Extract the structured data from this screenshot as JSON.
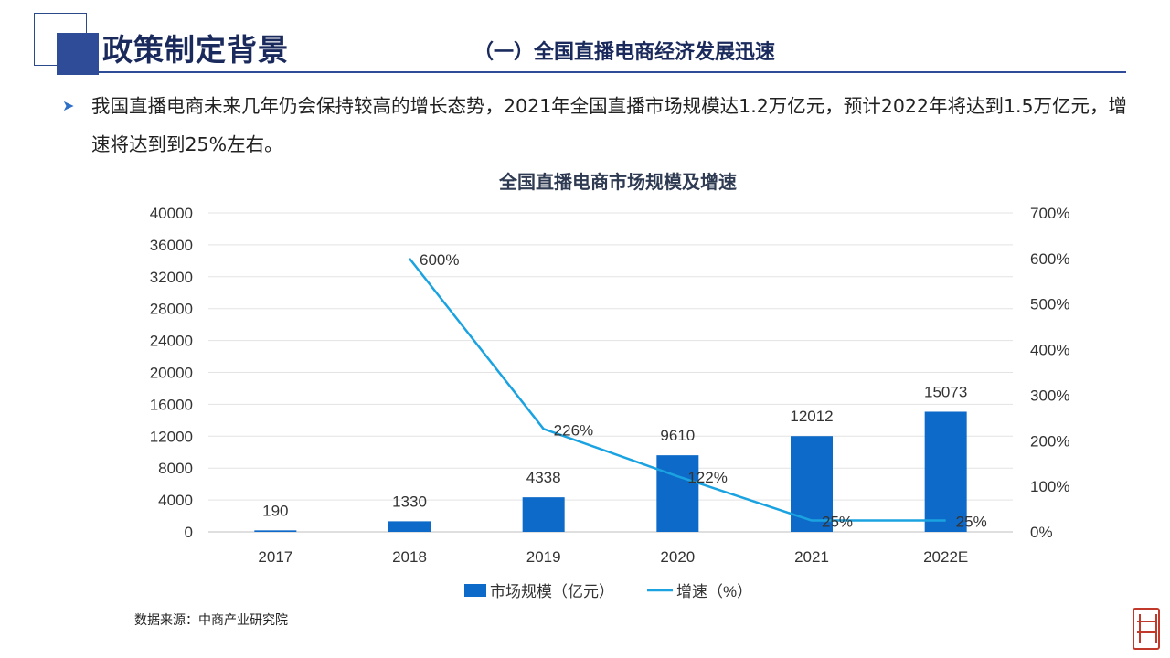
{
  "header": {
    "title": "政策制定背景",
    "subtitle": "（一）全国直播电商经济发展迅速"
  },
  "body": {
    "bullet_icon": "arrow-right-icon",
    "paragraph": "我国直播电商未来几年仍会保持较高的增长态势，2021年全国直播市场规模达1.2万亿元，预计2022年将达到1.5万亿元，增速将达到到25%左右。"
  },
  "source": "数据来源：中商产业研究院",
  "colors": {
    "bar": "#0e6ac8",
    "line": "#1aa3e0",
    "accent": "#2e4c97"
  },
  "chart_data": {
    "type": "bar",
    "title": "全国直播电商市场规模及增速",
    "categories": [
      "2017",
      "2018",
      "2019",
      "2020",
      "2021",
      "2022E"
    ],
    "series": [
      {
        "name": "市场规模（亿元）",
        "type": "bar",
        "axis": "left",
        "values": [
          190,
          1330,
          4338,
          9610,
          12012,
          15073
        ],
        "labels": [
          "190",
          "1330",
          "4338",
          "9610",
          "12012",
          "15073"
        ]
      },
      {
        "name": "增速（%）",
        "type": "line",
        "axis": "right",
        "values": [
          null,
          600,
          226,
          122,
          25,
          25
        ],
        "labels": [
          "",
          "600%",
          "226%",
          "122%",
          "25%",
          "25%"
        ]
      }
    ],
    "left_axis": {
      "min": 0,
      "max": 40000,
      "ticks": [
        "0",
        "4000",
        "8000",
        "12000",
        "16000",
        "20000",
        "24000",
        "28000",
        "32000",
        "36000",
        "40000"
      ]
    },
    "right_axis": {
      "min": 0,
      "max": 700,
      "ticks": [
        "0%",
        "100%",
        "200%",
        "300%",
        "400%",
        "500%",
        "600%",
        "700%"
      ]
    },
    "grid": true,
    "legend_position": "bottom"
  }
}
